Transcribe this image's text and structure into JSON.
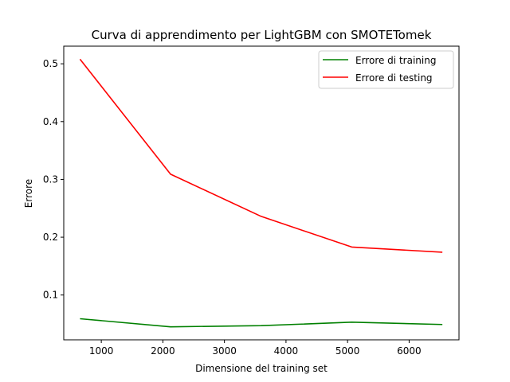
{
  "chart_data": {
    "type": "line",
    "title": "Curva di apprendimento per LightGBM con SMOTETomek",
    "xlabel": "Dimensione del training set",
    "ylabel": "Errore",
    "xlim": [
      390,
      6810
    ],
    "ylim": [
      0.0225,
      0.5305
    ],
    "xticks": [
      1000,
      2000,
      3000,
      4000,
      5000,
      6000
    ],
    "yticks": [
      0.1,
      0.2,
      0.3,
      0.4,
      0.5
    ],
    "grid": false,
    "legend": "top-right",
    "x": [
      654,
      2125,
      3597,
      5068,
      6540
    ],
    "series": [
      {
        "name": "Errore di training",
        "color": "#008000",
        "values": [
          0.059,
          0.045,
          0.047,
          0.053,
          0.049
        ]
      },
      {
        "name": "Errore di testing",
        "color": "#ff0000",
        "values": [
          0.508,
          0.309,
          0.236,
          0.183,
          0.174
        ]
      }
    ]
  }
}
